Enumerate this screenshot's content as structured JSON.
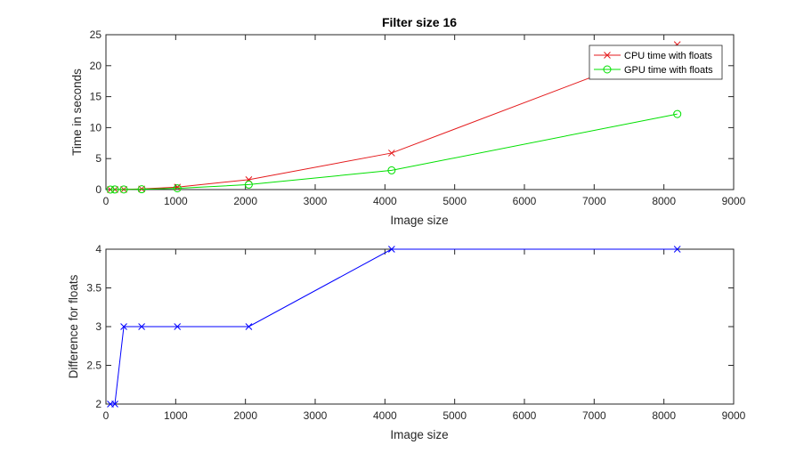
{
  "chart_data": [
    {
      "type": "line",
      "title": "Filter size 16",
      "xlabel": "Image size",
      "ylabel": "Time in seconds",
      "xlim": [
        0,
        9000
      ],
      "ylim": [
        0,
        25
      ],
      "xticks": [
        0,
        1000,
        2000,
        3000,
        4000,
        5000,
        6000,
        7000,
        8000,
        9000
      ],
      "yticks": [
        0,
        5,
        10,
        15,
        20,
        25
      ],
      "grid": false,
      "legend_position": "top-right",
      "series": [
        {
          "name": "CPU time with floats",
          "color": "#e41a1c",
          "marker": "x",
          "x": [
            64,
            128,
            256,
            512,
            1024,
            2048,
            4096,
            8192
          ],
          "y": [
            0.0,
            0.01,
            0.03,
            0.1,
            0.4,
            1.6,
            5.9,
            23.4
          ]
        },
        {
          "name": "GPU time with floats",
          "color": "#00e000",
          "marker": "o",
          "x": [
            64,
            128,
            256,
            512,
            1024,
            2048,
            4096,
            8192
          ],
          "y": [
            0.0,
            0.01,
            0.02,
            0.05,
            0.2,
            0.8,
            3.1,
            12.2
          ]
        }
      ]
    },
    {
      "type": "line",
      "title": "",
      "xlabel": "Image size",
      "ylabel": "Difference for floats",
      "xlim": [
        0,
        9000
      ],
      "ylim": [
        2,
        4
      ],
      "xticks": [
        0,
        1000,
        2000,
        3000,
        4000,
        5000,
        6000,
        7000,
        8000,
        9000
      ],
      "yticks": [
        2,
        2.5,
        3,
        3.5,
        4
      ],
      "grid": false,
      "series": [
        {
          "color": "#0000ff",
          "marker": "x",
          "x": [
            64,
            128,
            256,
            512,
            1024,
            2048,
            4096,
            8192
          ],
          "y": [
            2,
            2,
            3,
            3,
            3,
            3,
            4,
            4
          ]
        }
      ]
    }
  ]
}
